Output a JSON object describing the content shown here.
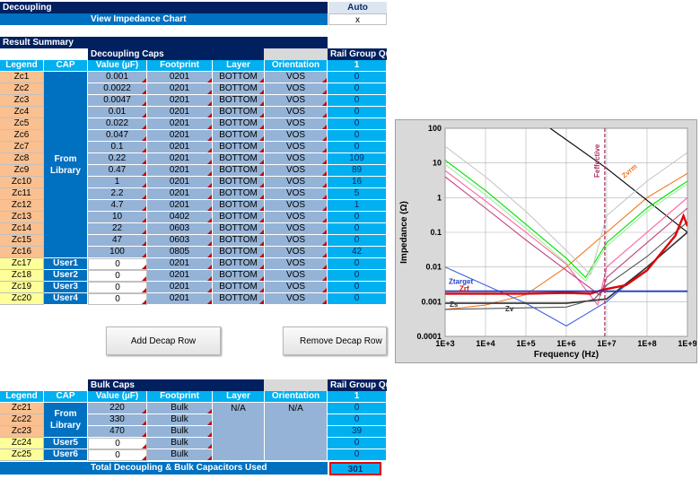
{
  "title_bar": {
    "label": "Decoupling",
    "mode": "Auto"
  },
  "view_chart": {
    "label": "View Impedance Chart",
    "value": "x"
  },
  "result_summary": "Result Summary",
  "decap": {
    "section": "Decoupling Caps",
    "rail_group": "Rail Group Qu",
    "rail_index": "1",
    "headers": [
      "Legend",
      "CAP",
      "Value (µF)",
      "Footprint",
      "Layer",
      "Orientation"
    ],
    "library_label_1": "From",
    "library_label_2": "Library",
    "rows": [
      {
        "legend": "Zc1",
        "value": "0.001",
        "footprint": "0201",
        "layer": "BOTTOM",
        "orient": "VOS",
        "qty": "0"
      },
      {
        "legend": "Zc2",
        "value": "0.0022",
        "footprint": "0201",
        "layer": "BOTTOM",
        "orient": "VOS",
        "qty": "0"
      },
      {
        "legend": "Zc3",
        "value": "0.0047",
        "footprint": "0201",
        "layer": "BOTTOM",
        "orient": "VOS",
        "qty": "0"
      },
      {
        "legend": "Zc4",
        "value": "0.01",
        "footprint": "0201",
        "layer": "BOTTOM",
        "orient": "VOS",
        "qty": "0"
      },
      {
        "legend": "Zc5",
        "value": "0.022",
        "footprint": "0201",
        "layer": "BOTTOM",
        "orient": "VOS",
        "qty": "0"
      },
      {
        "legend": "Zc6",
        "value": "0.047",
        "footprint": "0201",
        "layer": "BOTTOM",
        "orient": "VOS",
        "qty": "0"
      },
      {
        "legend": "Zc7",
        "value": "0.1",
        "footprint": "0201",
        "layer": "BOTTOM",
        "orient": "VOS",
        "qty": "0"
      },
      {
        "legend": "Zc8",
        "value": "0.22",
        "footprint": "0201",
        "layer": "BOTTOM",
        "orient": "VOS",
        "qty": "109"
      },
      {
        "legend": "Zc9",
        "value": "0.47",
        "footprint": "0201",
        "layer": "BOTTOM",
        "orient": "VOS",
        "qty": "89"
      },
      {
        "legend": "Zc10",
        "value": "1",
        "footprint": "0201",
        "layer": "BOTTOM",
        "orient": "VOS",
        "qty": "16"
      },
      {
        "legend": "Zc11",
        "value": "2.2",
        "footprint": "0201",
        "layer": "BOTTOM",
        "orient": "VOS",
        "qty": "5"
      },
      {
        "legend": "Zc12",
        "value": "4.7",
        "footprint": "0201",
        "layer": "BOTTOM",
        "orient": "VOS",
        "qty": "1"
      },
      {
        "legend": "Zc13",
        "value": "10",
        "footprint": "0402",
        "layer": "BOTTOM",
        "orient": "VOS",
        "qty": "0"
      },
      {
        "legend": "Zc14",
        "value": "22",
        "footprint": "0603",
        "layer": "BOTTOM",
        "orient": "VOS",
        "qty": "0"
      },
      {
        "legend": "Zc15",
        "value": "47",
        "footprint": "0603",
        "layer": "BOTTOM",
        "orient": "VOS",
        "qty": "0"
      },
      {
        "legend": "Zc16",
        "value": "100",
        "footprint": "0805",
        "layer": "BOTTOM",
        "orient": "VOS",
        "qty": "42"
      }
    ],
    "user_rows": [
      {
        "legend": "Zc17",
        "cap": "User1",
        "value": "0",
        "footprint": "0201",
        "layer": "BOTTOM",
        "orient": "VOS",
        "qty": "0"
      },
      {
        "legend": "Zc18",
        "cap": "User2",
        "value": "0",
        "footprint": "0201",
        "layer": "BOTTOM",
        "orient": "VOS",
        "qty": "0"
      },
      {
        "legend": "Zc19",
        "cap": "User3",
        "value": "0",
        "footprint": "0201",
        "layer": "BOTTOM",
        "orient": "VOS",
        "qty": "0"
      },
      {
        "legend": "Zc20",
        "cap": "User4",
        "value": "0",
        "footprint": "0201",
        "layer": "BOTTOM",
        "orient": "VOS",
        "qty": "0"
      }
    ]
  },
  "buttons": {
    "add": "Add Decap Row",
    "remove": "Remove Decap Row"
  },
  "bulk": {
    "section": "Bulk Caps",
    "rail_group": "Rail Group Qu",
    "rail_index": "1",
    "headers": [
      "Legend",
      "CAP",
      "Value (µF)",
      "Footprint",
      "Layer",
      "Orientation"
    ],
    "library_label_1": "From",
    "library_label_2": "Library",
    "layer": "N/A",
    "orient": "N/A",
    "rows": [
      {
        "legend": "Zc21",
        "value": "220",
        "footprint": "Bulk",
        "qty": "0"
      },
      {
        "legend": "Zc22",
        "value": "330",
        "footprint": "Bulk",
        "qty": "0"
      },
      {
        "legend": "Zc23",
        "value": "470",
        "footprint": "Bulk",
        "qty": "39"
      }
    ],
    "user_rows": [
      {
        "legend": "Zc24",
        "cap": "User5",
        "value": "0",
        "footprint": "Bulk",
        "qty": "0"
      },
      {
        "legend": "Zc25",
        "cap": "User6",
        "value": "0",
        "footprint": "Bulk",
        "qty": "0"
      }
    ]
  },
  "total": {
    "label": "Total Decoupling & Bulk Capacitors Used",
    "value": "301"
  },
  "chart_data": {
    "type": "line",
    "xlabel": "Frequency (Hz)",
    "ylabel": "Impedance (Ω)",
    "x_scale": "log",
    "y_scale": "log",
    "xlim": [
      1000,
      1000000000
    ],
    "ylim": [
      0.0001,
      100
    ],
    "x_ticks": [
      "1E+3",
      "1E+4",
      "1E+5",
      "1E+6",
      "1E+7",
      "1E+8",
      "1E+9"
    ],
    "y_ticks": [
      "100",
      "10",
      "1",
      "0.1",
      "0.01",
      "0.001",
      "0.0001"
    ],
    "grid": true,
    "annotations": [
      "Feffective",
      "Zvrm",
      "Ztarget",
      "Zrf",
      "Zs",
      "Zv"
    ],
    "markers": {
      "feffective_hz": 9000000,
      "ztarget_ohm": 0.002
    },
    "colors": {
      "ztarget": "#1f3fbf",
      "zrf": "#e00000",
      "zvrm": "#f07820",
      "zs": "#333333",
      "zv": "#333333",
      "feffective": "#b0306a"
    },
    "series": [
      {
        "name": "Zvrm",
        "color": "#f07820",
        "x": [
          1000,
          10000,
          100000,
          1000000,
          10000000,
          100000000,
          1000000000
        ],
        "y": [
          0.0006,
          0.0008,
          0.0016,
          0.01,
          0.1,
          1,
          5
        ]
      },
      {
        "name": "black-line",
        "color": "#000000",
        "x": [
          400000,
          10000000,
          1000000000
        ],
        "y": [
          100,
          7,
          0.1
        ]
      },
      {
        "name": "green",
        "color": "#00e000",
        "x": [
          1000,
          10000,
          100000,
          1000000,
          3000000,
          10000000,
          100000000,
          1000000000
        ],
        "y": [
          12,
          1.6,
          0.17,
          0.018,
          0.005,
          0.05,
          0.5,
          3
        ]
      },
      {
        "name": "light-green",
        "color": "#a0f0a0",
        "x": [
          1000,
          10000,
          100000,
          1000000,
          3000000,
          10000000,
          100000000,
          1000000000
        ],
        "y": [
          9,
          1.2,
          0.13,
          0.013,
          0.004,
          0.04,
          0.4,
          2.5
        ]
      },
      {
        "name": "light-gray",
        "color": "#c8c8c8",
        "x": [
          1000,
          10000,
          100000,
          1000000,
          4000000,
          10000000,
          100000000,
          1000000000
        ],
        "y": [
          30,
          4,
          0.4,
          0.03,
          0.006,
          0.3,
          3,
          20
        ]
      },
      {
        "name": "pink",
        "color": "#ff60a0",
        "x": [
          1000,
          10000,
          100000,
          1000000,
          6000000,
          10000000,
          100000000,
          1000000000
        ],
        "y": [
          6,
          0.8,
          0.1,
          0.012,
          0.0008,
          0.01,
          0.1,
          1
        ]
      },
      {
        "name": "magenta",
        "color": "#c04080",
        "x": [
          1000,
          10000,
          100000,
          1000000,
          7000000,
          10000000,
          100000000,
          1000000000
        ],
        "y": [
          4,
          0.5,
          0.06,
          0.008,
          0.0015,
          0.005,
          0.05,
          0.5
        ]
      },
      {
        "name": "blue",
        "color": "#4060e0",
        "x": [
          1000,
          10000,
          100000,
          1000000,
          10000000,
          100000000,
          1000000000
        ],
        "y": [
          0.01,
          0.003,
          0.0009,
          0.0002,
          0.001,
          0.01,
          0.1
        ]
      },
      {
        "name": "Zs",
        "color": "#333333",
        "x": [
          1000,
          1000000,
          10000000,
          100000000,
          1000000000
        ],
        "y": [
          0.0009,
          0.0009,
          0.0012,
          0.01,
          0.1
        ]
      },
      {
        "name": "Zv",
        "color": "#555555",
        "x": [
          1000,
          1000000,
          5000000,
          10000000,
          100000000,
          1000000000
        ],
        "y": [
          0.0006,
          0.0007,
          0.0012,
          0.003,
          0.02,
          0.2
        ]
      },
      {
        "name": "Zrf",
        "color": "#e00000",
        "x": [
          1000,
          100000,
          1000000,
          4000000,
          8000000,
          30000000,
          100000000,
          500000000,
          800000000,
          1000000000
        ],
        "y": [
          0.0017,
          0.0017,
          0.0018,
          0.0017,
          0.0022,
          0.003,
          0.008,
          0.08,
          0.3,
          0.15
        ]
      },
      {
        "name": "Ztarget",
        "color": "#1f3fbf",
        "x": [
          1000,
          1000000000
        ],
        "y": [
          0.002,
          0.002
        ]
      }
    ]
  }
}
